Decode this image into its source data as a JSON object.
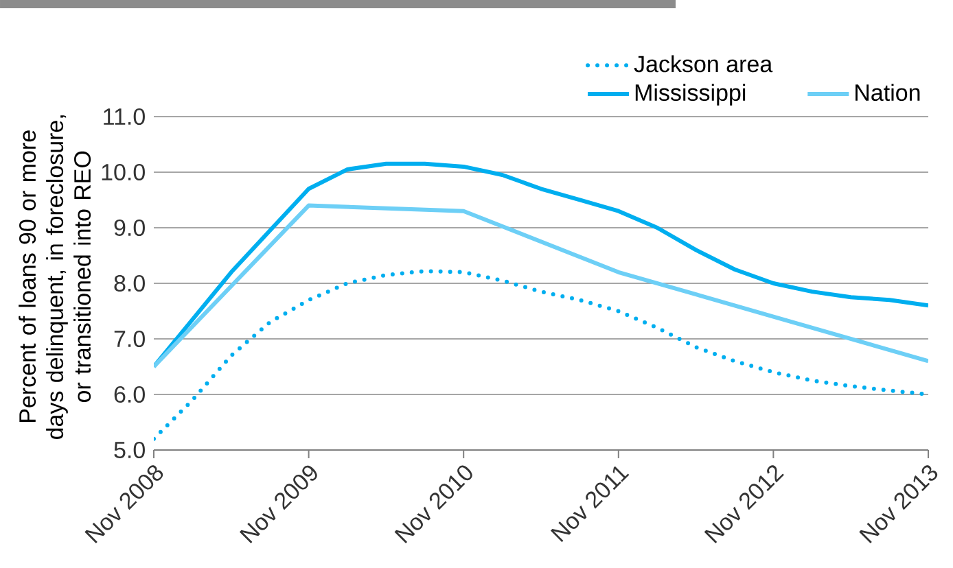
{
  "chart_data": {
    "type": "line",
    "ylabel": "Percent of loans 90 or more days delinquent, in foreclosure, or transitioned into REO",
    "xlim": [
      "2008-11",
      "2013-11"
    ],
    "xticks": [
      {
        "value": "2008-11",
        "label": "Nov 2008"
      },
      {
        "value": "2009-11",
        "label": "Nov 2009"
      },
      {
        "value": "2010-11",
        "label": "Nov 2010"
      },
      {
        "value": "2011-11",
        "label": "Nov 2011"
      },
      {
        "value": "2012-11",
        "label": "Nov 2012"
      },
      {
        "value": "2013-11",
        "label": "Nov 2013"
      }
    ],
    "ylim": [
      5,
      11
    ],
    "yticks": [
      {
        "value": 5,
        "label": "5.0"
      },
      {
        "value": 6,
        "label": "6.0"
      },
      {
        "value": 7,
        "label": "7.0"
      },
      {
        "value": 8,
        "label": "8.0"
      },
      {
        "value": 9,
        "label": "9.0"
      },
      {
        "value": 10,
        "label": "10.0"
      },
      {
        "value": 11,
        "label": "11.0"
      }
    ],
    "grid": "y",
    "legend": "top right",
    "marker": "none",
    "series": [
      {
        "name": "Jackson area",
        "color": "#00aeef",
        "line_style": "dotted",
        "x": [
          "2008-11",
          "2009-02",
          "2009-05",
          "2009-08",
          "2009-11",
          "2010-02",
          "2010-05",
          "2010-08",
          "2010-11",
          "2011-02",
          "2011-05",
          "2011-08",
          "2011-11",
          "2012-02",
          "2012-05",
          "2012-08",
          "2012-11",
          "2013-02",
          "2013-05",
          "2013-08",
          "2013-11"
        ],
        "values": [
          5.2,
          5.9,
          6.7,
          7.3,
          7.7,
          8.0,
          8.15,
          8.22,
          8.2,
          8.05,
          7.85,
          7.7,
          7.5,
          7.2,
          6.85,
          6.6,
          6.4,
          6.25,
          6.15,
          6.07,
          6.0
        ]
      },
      {
        "name": "Mississippi",
        "color": "#00aeef",
        "line_style": "solid",
        "x": [
          "2008-11",
          "2009-05",
          "2009-11",
          "2010-02",
          "2010-05",
          "2010-08",
          "2010-11",
          "2011-02",
          "2011-05",
          "2011-08",
          "2011-11",
          "2012-02",
          "2012-05",
          "2012-08",
          "2012-11",
          "2013-02",
          "2013-05",
          "2013-08",
          "2013-11"
        ],
        "values": [
          6.5,
          8.2,
          9.7,
          10.05,
          10.15,
          10.15,
          10.1,
          9.95,
          9.7,
          9.5,
          9.3,
          9.0,
          8.6,
          8.25,
          8.0,
          7.85,
          7.75,
          7.7,
          7.6
        ]
      },
      {
        "name": "Nation",
        "color": "#6dcff6",
        "line_style": "solid",
        "x": [
          "2008-11",
          "2009-11",
          "2010-11",
          "2011-11",
          "2012-11",
          "2013-11"
        ],
        "values": [
          6.5,
          9.4,
          9.3,
          8.2,
          7.4,
          6.6
        ]
      }
    ]
  }
}
